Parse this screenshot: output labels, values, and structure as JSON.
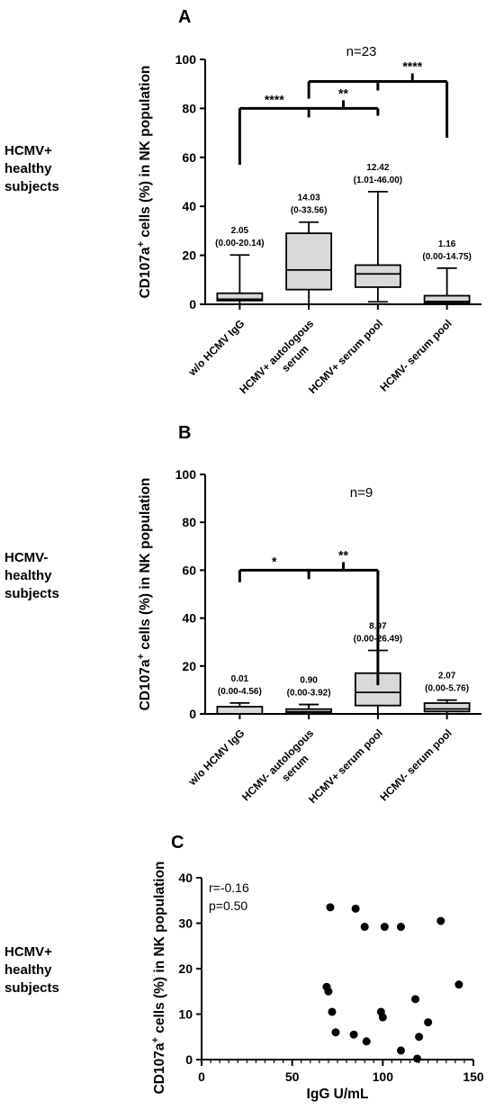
{
  "chart_data": [
    {
      "type": "box",
      "panel": "A",
      "group_label": [
        "HCMV+",
        "healthy",
        "subjects"
      ],
      "n_label": "n=23",
      "ylabel_prefix": "CD107a",
      "ylabel_sup": "+",
      "ylabel_suffix": " cells (%) in NK population",
      "ylim": [
        0,
        100
      ],
      "yticks": [
        "0",
        "20",
        "40",
        "60",
        "80",
        "100"
      ],
      "categories": [
        [
          "w/o HCMV IgG"
        ],
        [
          "HCMV+ autologous",
          "serum"
        ],
        [
          "HCMV+ serum pool"
        ],
        [
          "HCMV- serum pool"
        ]
      ],
      "boxes": [
        {
          "min": 0.0,
          "q1": 1.5,
          "median": 2.05,
          "q3": 4.5,
          "max": 20.14
        },
        {
          "min": 0.0,
          "q1": 6.0,
          "median": 14.03,
          "q3": 29.0,
          "max": 33.56
        },
        {
          "min": 1.01,
          "q1": 7.0,
          "median": 12.42,
          "q3": 16.0,
          "max": 46.0
        },
        {
          "min": 0.0,
          "q1": 0.5,
          "median": 1.16,
          "q3": 3.5,
          "max": 14.75
        }
      ],
      "annotations": [
        {
          "median": "2.05",
          "range": "(0.00-20.14)"
        },
        {
          "median": "14.03",
          "range": "(0-33.56)"
        },
        {
          "median": "12.42",
          "range": "(1.01-46.00)"
        },
        {
          "median": "1.16",
          "range": "(0.00-14.75)"
        }
      ],
      "brackets": [
        {
          "from": 0,
          "mid": 1,
          "to": 2,
          "y": 80,
          "y_left": 57,
          "y_right": 77,
          "left_label": "****",
          "right_label": "**"
        },
        {
          "from": 1,
          "mid": 2,
          "to": 3,
          "y": 91,
          "y_left": 84,
          "y_right": 68,
          "left_label": "",
          "right_label": "****"
        }
      ]
    },
    {
      "type": "box",
      "panel": "B",
      "group_label": [
        "HCMV-",
        "healthy",
        "subjects"
      ],
      "n_label": "n=9",
      "ylabel_prefix": "CD107a",
      "ylabel_sup": "+",
      "ylabel_suffix": " cells (%) in NK population",
      "ylim": [
        0,
        100
      ],
      "yticks": [
        "0",
        "20",
        "40",
        "60",
        "80",
        "100"
      ],
      "categories": [
        [
          "w/o HCMV IgG"
        ],
        [
          "HCMV- autologous",
          "serum"
        ],
        [
          "HCMV+ serum pool"
        ],
        [
          "HCMV- serum pool"
        ]
      ],
      "boxes": [
        {
          "min": 0.0,
          "q1": 0.0,
          "median": 0.01,
          "q3": 3.0,
          "max": 4.56
        },
        {
          "min": 0.0,
          "q1": 0.3,
          "median": 0.9,
          "q3": 2.0,
          "max": 3.92
        },
        {
          "min": 0.0,
          "q1": 3.5,
          "median": 8.97,
          "q3": 17.0,
          "max": 26.49
        },
        {
          "min": 0.0,
          "q1": 1.0,
          "median": 2.07,
          "q3": 4.5,
          "max": 5.76
        }
      ],
      "annotations": [
        {
          "median": "0.01",
          "range": "(0.00-4.56)"
        },
        {
          "median": "0.90",
          "range": "(0.00-3.92)"
        },
        {
          "median": "8.97",
          "range": "(0.00-26.49)"
        },
        {
          "median": "2.07",
          "range": "(0.00-5.76)"
        }
      ],
      "brackets": [
        {
          "from": 0,
          "mid": 1,
          "to": 2,
          "y": 60,
          "y_left": 55,
          "y_right": 12,
          "left_label": "*",
          "right_label": "**"
        }
      ]
    },
    {
      "type": "scatter",
      "panel": "C",
      "group_label": [
        "HCMV+",
        "healthy",
        "subjects"
      ],
      "ylabel_prefix": "CD107a",
      "ylabel_sup": "+",
      "ylabel_suffix": " cells (%) in NK population",
      "xlabel": "IgG U/mL",
      "xlim": [
        0,
        150
      ],
      "ylim": [
        0,
        40
      ],
      "xticks": [
        "0",
        "50",
        "100",
        "150"
      ],
      "yticks": [
        "0",
        "10",
        "20",
        "30",
        "40"
      ],
      "stats": [
        "r=-0.16",
        "p=0.50"
      ],
      "points": [
        {
          "x": 71,
          "y": 33.5
        },
        {
          "x": 85,
          "y": 33.2
        },
        {
          "x": 90,
          "y": 29.2
        },
        {
          "x": 101,
          "y": 29.2
        },
        {
          "x": 110,
          "y": 29.2
        },
        {
          "x": 132,
          "y": 30.5
        },
        {
          "x": 69,
          "y": 16.0
        },
        {
          "x": 70,
          "y": 15.0
        },
        {
          "x": 72,
          "y": 10.5
        },
        {
          "x": 74,
          "y": 6.0
        },
        {
          "x": 84,
          "y": 5.5
        },
        {
          "x": 91,
          "y": 4.0
        },
        {
          "x": 99,
          "y": 10.5
        },
        {
          "x": 100,
          "y": 9.3
        },
        {
          "x": 110,
          "y": 2.0
        },
        {
          "x": 118,
          "y": 13.3
        },
        {
          "x": 120,
          "y": 5.0
        },
        {
          "x": 119,
          "y": 0.2
        },
        {
          "x": 125,
          "y": 8.2
        },
        {
          "x": 142,
          "y": 16.5
        }
      ]
    }
  ]
}
